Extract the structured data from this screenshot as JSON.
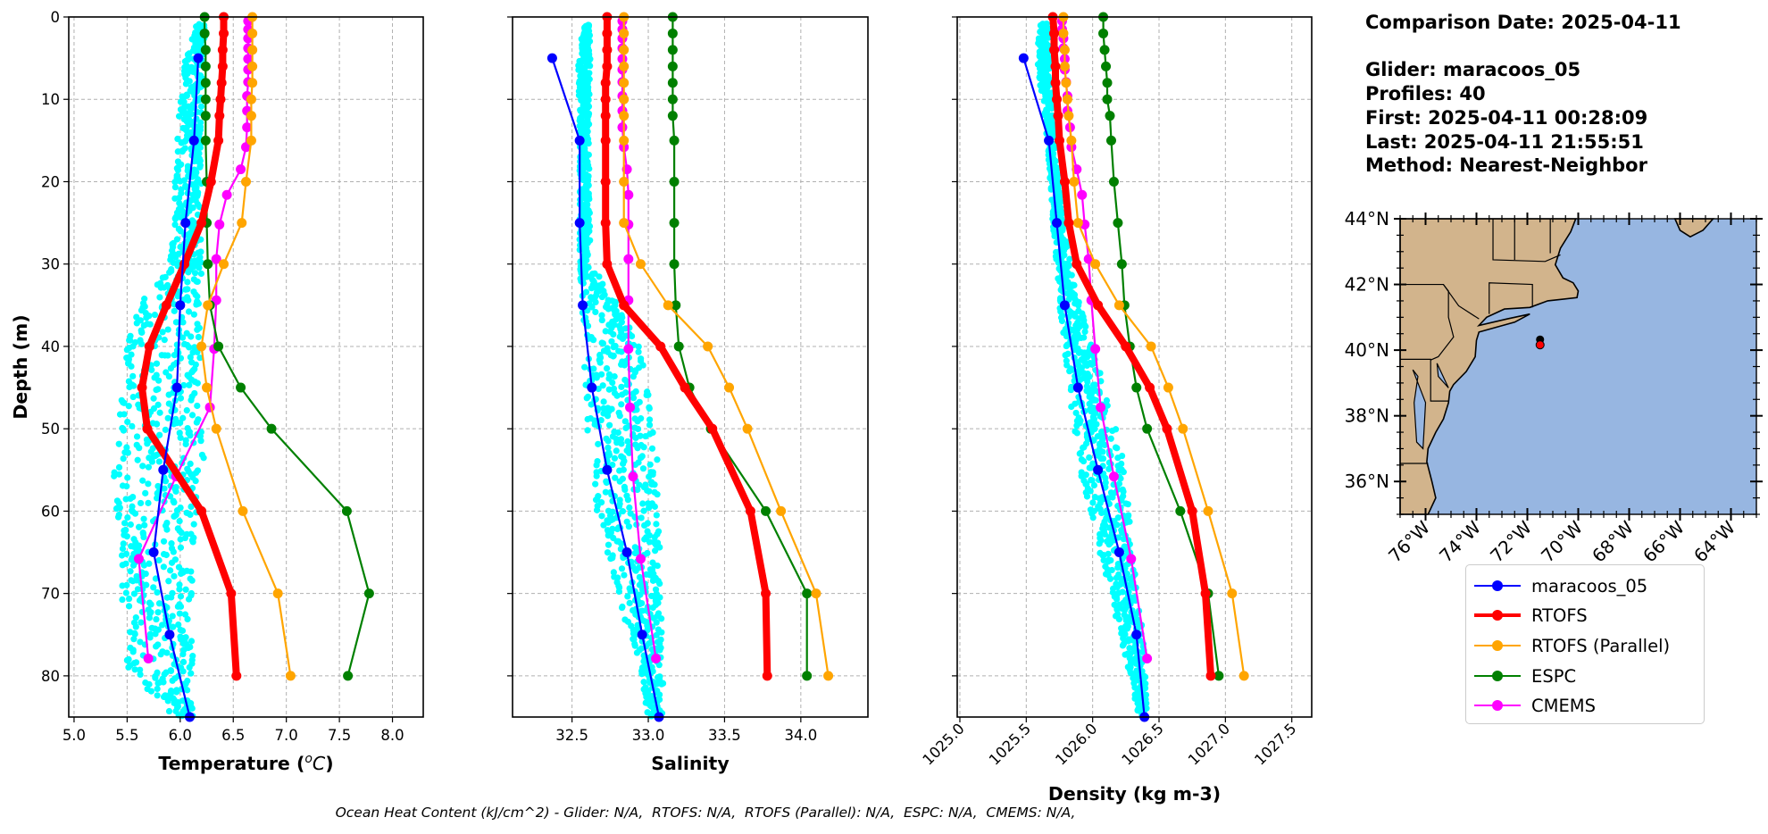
{
  "info": {
    "comparison_date": "Comparison Date: 2025-04-11",
    "glider": "Glider: maracoos_05",
    "profiles": "Profiles: 40",
    "first": "First: 2025-04-11 00:28:09",
    "last": "Last: 2025-04-11 21:55:51",
    "method": "Method: Nearest-Neighbor"
  },
  "footer": "Ocean Heat Content (kJ/cm^2) - Glider: N/A,  RTOFS: N/A,  RTOFS (Parallel): N/A,  ESPC: N/A,  CMEMS: N/A,",
  "legend": [
    {
      "name": "maracoos_05",
      "color": "#0000ff"
    },
    {
      "name": "RTOFS",
      "color": "#ff0000"
    },
    {
      "name": "RTOFS (Parallel)",
      "color": "#ffa500"
    },
    {
      "name": "ESPC",
      "color": "#008000"
    },
    {
      "name": "CMEMS",
      "color": "#ff00ff"
    }
  ],
  "depths": {
    "glider": [
      5,
      15,
      25,
      35,
      45,
      55,
      65,
      75,
      85
    ],
    "model": [
      0,
      2,
      4,
      6,
      8,
      10,
      12,
      15,
      20,
      25,
      30,
      35,
      40,
      45,
      50,
      60,
      70,
      80
    ],
    "cmems": [
      0.5,
      1.5,
      2.6,
      3.8,
      5.1,
      6.4,
      7.9,
      9.6,
      11.4,
      13.4,
      15.8,
      18.5,
      21.6,
      25.2,
      29.4,
      34.4,
      40.3,
      47.4,
      55.8,
      65.8,
      77.9
    ]
  },
  "chart_data": [
    {
      "type": "line",
      "xlabel_prefix": "Temperature (",
      "xlabel_sup": "o",
      "xlabel_unit": "C",
      "xlabel_suffix": ")",
      "ylabel": "Depth (m)",
      "xlim": [
        4.95,
        8.29
      ],
      "ylim": [
        85,
        0
      ],
      "grid": true,
      "xticks": [
        "5.0",
        "5.5",
        "6.0",
        "6.5",
        "7.0",
        "7.5",
        "8.0"
      ],
      "yticks": [
        "0",
        "10",
        "20",
        "30",
        "40",
        "50",
        "60",
        "70",
        "80"
      ],
      "glider_scatter_color": "#00ffff",
      "glider_scatter_envelope": [
        [
          1,
          6.15,
          6.25
        ],
        [
          5,
          6.05,
          6.22
        ],
        [
          10,
          6.0,
          6.2
        ],
        [
          20,
          5.95,
          6.2
        ],
        [
          30,
          5.9,
          6.2
        ],
        [
          35,
          5.62,
          6.2
        ],
        [
          40,
          5.5,
          6.2
        ],
        [
          50,
          5.42,
          6.2
        ],
        [
          55,
          5.36,
          6.25
        ],
        [
          60,
          5.4,
          6.15
        ],
        [
          70,
          5.45,
          6.12
        ],
        [
          79,
          5.5,
          6.12
        ],
        [
          85,
          5.95,
          6.12
        ]
      ],
      "series": [
        {
          "name": "maracoos_05",
          "depth_key": "glider",
          "values": [
            6.17,
            6.13,
            6.05,
            6.0,
            5.97,
            5.84,
            5.75,
            5.9,
            6.09
          ]
        },
        {
          "name": "RTOFS",
          "depth_key": "model",
          "values": [
            6.41,
            6.41,
            6.4,
            6.4,
            6.39,
            6.38,
            6.37,
            6.36,
            6.29,
            6.2,
            6.04,
            5.87,
            5.71,
            5.64,
            5.69,
            6.2,
            6.48,
            6.53
          ]
        },
        {
          "name": "RTOFS (Parallel)",
          "depth_key": "model",
          "values": [
            6.68,
            6.68,
            6.68,
            6.68,
            6.68,
            6.67,
            6.67,
            6.67,
            6.62,
            6.58,
            6.41,
            6.26,
            6.2,
            6.25,
            6.34,
            6.59,
            6.92,
            7.04
          ]
        },
        {
          "name": "ESPC",
          "depth_key": "model",
          "values": [
            6.23,
            6.23,
            6.24,
            6.24,
            6.24,
            6.24,
            6.24,
            6.24,
            6.25,
            6.25,
            6.26,
            6.28,
            6.36,
            6.57,
            6.86,
            7.57,
            7.78,
            7.58
          ]
        },
        {
          "name": "CMEMS",
          "depth_key": "cmems",
          "values": [
            6.64,
            6.64,
            6.64,
            6.64,
            6.64,
            6.64,
            6.64,
            6.63,
            6.63,
            6.63,
            6.62,
            6.57,
            6.44,
            6.37,
            6.34,
            6.34,
            6.32,
            6.28,
            5.96,
            5.61,
            5.7
          ]
        }
      ]
    },
    {
      "type": "line",
      "xlabel": "Salinity",
      "xlim": [
        32.11,
        34.44
      ],
      "ylim": [
        85,
        0
      ],
      "grid": true,
      "xticks": [
        "32.5",
        "33.0",
        "33.5",
        "34.0"
      ],
      "yticks": [
        "0",
        "10",
        "20",
        "30",
        "40",
        "50",
        "60",
        "70",
        "80"
      ],
      "glider_scatter_color": "#00ffff",
      "glider_scatter_envelope": [
        [
          1,
          32.58,
          32.62
        ],
        [
          5,
          32.54,
          32.62
        ],
        [
          15,
          32.55,
          32.61
        ],
        [
          30,
          32.55,
          32.62
        ],
        [
          35,
          32.56,
          32.8
        ],
        [
          40,
          32.57,
          32.95
        ],
        [
          45,
          32.58,
          33.0
        ],
        [
          50,
          32.6,
          33.05
        ],
        [
          60,
          32.66,
          33.08
        ],
        [
          70,
          32.8,
          33.08
        ],
        [
          80,
          32.95,
          33.1
        ],
        [
          85,
          33.0,
          33.1
        ]
      ],
      "series": [
        {
          "name": "maracoos_05",
          "depth_key": "glider",
          "values": [
            32.37,
            32.55,
            32.55,
            32.57,
            32.63,
            32.73,
            32.86,
            32.96,
            33.07
          ]
        },
        {
          "name": "RTOFS",
          "depth_key": "model",
          "values": [
            32.73,
            32.73,
            32.73,
            32.73,
            32.72,
            32.72,
            32.72,
            32.72,
            32.72,
            32.72,
            32.73,
            32.84,
            33.08,
            33.24,
            33.42,
            33.67,
            33.77,
            33.78
          ]
        },
        {
          "name": "RTOFS (Parallel)",
          "depth_key": "model",
          "values": [
            32.84,
            32.84,
            32.84,
            32.84,
            32.84,
            32.84,
            32.84,
            32.84,
            32.84,
            32.84,
            32.95,
            33.13,
            33.39,
            33.53,
            33.65,
            33.87,
            34.1,
            34.18
          ]
        },
        {
          "name": "ESPC",
          "depth_key": "model",
          "values": [
            33.16,
            33.16,
            33.16,
            33.16,
            33.16,
            33.16,
            33.16,
            33.17,
            33.17,
            33.17,
            33.17,
            33.18,
            33.2,
            33.27,
            33.41,
            33.77,
            34.04,
            34.04
          ]
        },
        {
          "name": "CMEMS",
          "depth_key": "cmems",
          "values": [
            32.83,
            32.83,
            32.83,
            32.83,
            32.83,
            32.83,
            32.83,
            32.83,
            32.83,
            32.83,
            32.84,
            32.86,
            32.87,
            32.87,
            32.87,
            32.87,
            32.87,
            32.88,
            32.9,
            32.95,
            33.05
          ]
        }
      ]
    },
    {
      "type": "line",
      "xlabel": "Density (kg m-3)",
      "xlim": [
        1024.98,
        1027.65
      ],
      "ylim": [
        85,
        0
      ],
      "grid": true,
      "xticks": [
        "1025.0",
        "1025.5",
        "1026.0",
        "1026.5",
        "1027.0",
        "1027.5"
      ],
      "yticks": [
        "0",
        "10",
        "20",
        "30",
        "40",
        "50",
        "60",
        "70",
        "80"
      ],
      "glider_scatter_color": "#00ffff",
      "glider_scatter_envelope": [
        [
          1,
          1025.6,
          1025.66
        ],
        [
          5,
          1025.58,
          1025.68
        ],
        [
          15,
          1025.66,
          1025.72
        ],
        [
          25,
          1025.7,
          1025.78
        ],
        [
          35,
          1025.75,
          1025.9
        ],
        [
          45,
          1025.82,
          1026.1
        ],
        [
          55,
          1025.9,
          1026.25
        ],
        [
          65,
          1026.05,
          1026.3
        ],
        [
          75,
          1026.2,
          1026.38
        ],
        [
          85,
          1026.35,
          1026.42
        ]
      ],
      "series": [
        {
          "name": "maracoos_05",
          "depth_key": "glider",
          "values": [
            1025.48,
            1025.67,
            1025.73,
            1025.79,
            1025.89,
            1026.04,
            1026.2,
            1026.33,
            1026.39
          ]
        },
        {
          "name": "RTOFS",
          "depth_key": "model",
          "values": [
            1025.7,
            1025.71,
            1025.71,
            1025.72,
            1025.72,
            1025.73,
            1025.74,
            1025.75,
            1025.79,
            1025.82,
            1025.88,
            1026.04,
            1026.25,
            1026.43,
            1026.56,
            1026.75,
            1026.85,
            1026.89
          ]
        },
        {
          "name": "RTOFS (Parallel)",
          "depth_key": "model",
          "values": [
            1025.78,
            1025.78,
            1025.79,
            1025.79,
            1025.8,
            1025.81,
            1025.82,
            1025.84,
            1025.86,
            1025.89,
            1026.02,
            1026.2,
            1026.44,
            1026.57,
            1026.68,
            1026.87,
            1027.05,
            1027.14
          ]
        },
        {
          "name": "ESPC",
          "depth_key": "model",
          "values": [
            1026.08,
            1026.08,
            1026.09,
            1026.1,
            1026.11,
            1026.11,
            1026.13,
            1026.14,
            1026.16,
            1026.19,
            1026.22,
            1026.24,
            1026.28,
            1026.33,
            1026.41,
            1026.66,
            1026.87,
            1026.95
          ]
        },
        {
          "name": "CMEMS",
          "depth_key": "cmems",
          "values": [
            1025.77,
            1025.77,
            1025.78,
            1025.78,
            1025.79,
            1025.79,
            1025.8,
            1025.81,
            1025.81,
            1025.83,
            1025.84,
            1025.88,
            1025.92,
            1025.94,
            1025.97,
            1025.99,
            1026.02,
            1026.06,
            1026.16,
            1026.29,
            1026.41
          ]
        }
      ]
    }
  ],
  "map": {
    "lon_range": [
      -77,
      -63
    ],
    "lat_range": [
      35,
      44
    ],
    "lat_ticks": [
      "36°N",
      "38°N",
      "40°N",
      "42°N",
      "44°N"
    ],
    "lon_ticks": [
      "76°W",
      "74°W",
      "72°W",
      "70°W",
      "68°W",
      "66°W",
      "64°W"
    ],
    "land_color": "#d2b48c",
    "ocean_color": "#97b6e1",
    "glider_position": {
      "lon": -71.5,
      "lat": 40.16,
      "color": "#ff0000"
    }
  }
}
